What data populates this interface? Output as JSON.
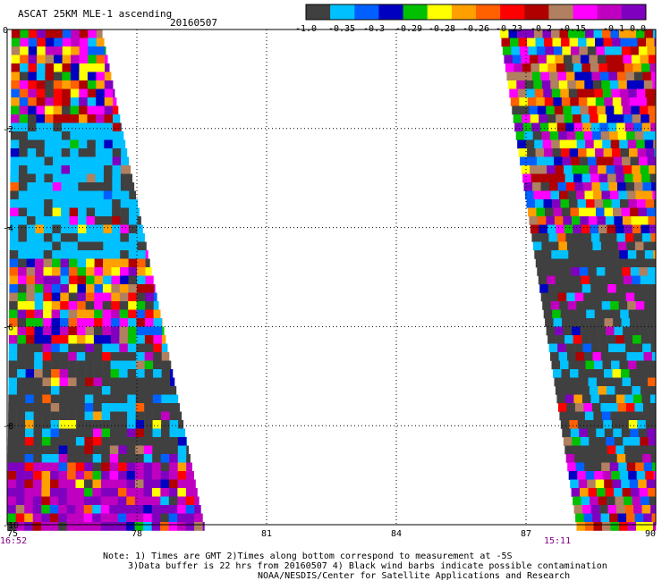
{
  "header": {
    "title": "ASCAT 25KM MLE-1 ascending",
    "date": "20160507"
  },
  "colorbar": {
    "colors": [
      "#404040",
      "#00c0ff",
      "#0060ff",
      "#0000c0",
      "#00c000",
      "#ffff00",
      "#ffa000",
      "#ff6000",
      "#ff0000",
      "#b00000",
      "#b08060",
      "#ff00ff",
      "#c000c0",
      "#8000c0"
    ],
    "labels": [
      "-1.0",
      "-0.35",
      "-0.3",
      "-0.29",
      "-0.28",
      "-0.26",
      "-0.23",
      "-0.2",
      "-0.15",
      "-0.1",
      "0.0"
    ]
  },
  "chart_data": {
    "type": "heatmap",
    "title": "ASCAT 25KM MLE-1 ascending",
    "date": "20160507",
    "xlim": [
      75,
      90
    ],
    "ylim": [
      -10,
      0
    ],
    "x_ticks": [
      "75",
      "78",
      "81",
      "84",
      "87",
      "90"
    ],
    "y_ticks": [
      "0",
      "-2",
      "-4",
      "-6",
      "-8",
      "-10"
    ],
    "grid": true,
    "swaths": [
      {
        "name": "",
        "time": "16:52",
        "lon_range_top": [
          75.1,
          77.2
        ],
        "lon_range_bottom": [
          75.0,
          79.6
        ]
      },
      {
        "name": "",
        "time": "15:11",
        "lon_range_top": [
          86.4,
          90.0
        ],
        "lon_range_bottom": [
          88.2,
          90.0
        ]
      }
    ]
  },
  "time_labels": {
    "left": "16:52",
    "right": "15:11"
  },
  "footer": {
    "line1": "Note: 1) Times are GMT 2)Times along bottom correspond to measurement at -5S",
    "line2": "3)Data buffer is 22 hrs from 20160507 4) Black wind barbs indicate possible contamination",
    "line3": "NOAA/NESDIS/Center for Satellite Applications and Research"
  }
}
